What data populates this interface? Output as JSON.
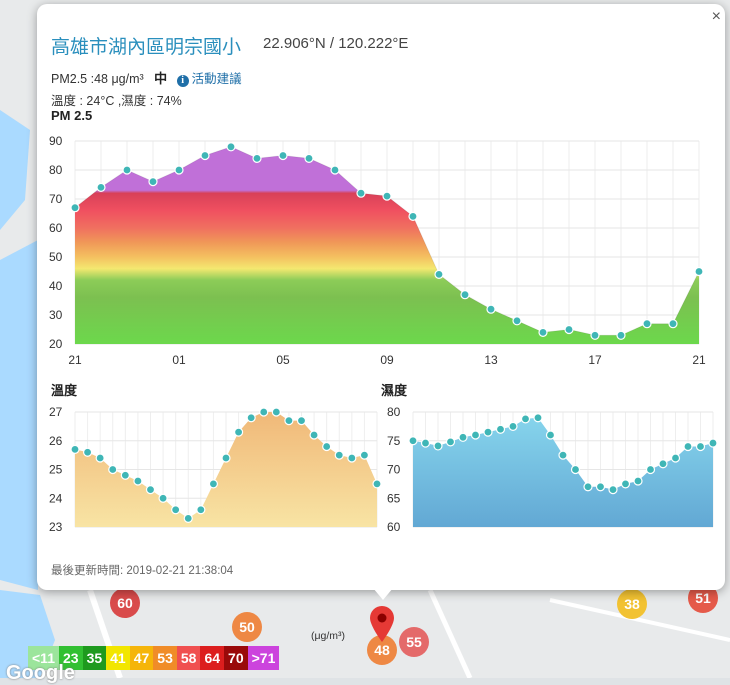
{
  "popup": {
    "close_label": "×",
    "title": "高雄市湖內區明宗國小",
    "coordinates": "22.906°N / 120.222°E",
    "pm25_text": "PM2.5 :48 μg/m³",
    "level_text": "中",
    "advice_icon": "info-icon",
    "advice_text": "活動建議",
    "temp_humidity_text": "溫度 : 24°C ,濕度 : 74%",
    "updated_text": "最後更新時間: 2019-02-21 21:38:04"
  },
  "chart_data": [
    {
      "type": "area",
      "title": "PM 2.5",
      "x": [
        "21",
        "22",
        "23",
        "00",
        "01",
        "02",
        "03",
        "04",
        "05",
        "06",
        "07",
        "08",
        "09",
        "10",
        "11",
        "12",
        "13",
        "14",
        "15",
        "16",
        "17",
        "18",
        "19",
        "20",
        "21"
      ],
      "xticks": [
        "21",
        "01",
        "05",
        "09",
        "13",
        "17",
        "21"
      ],
      "values": [
        67,
        74,
        80,
        76,
        80,
        85,
        88,
        84,
        85,
        84,
        80,
        72,
        71,
        64,
        44,
        37,
        32,
        28,
        24,
        25,
        23,
        23,
        27,
        27,
        45
      ],
      "ylim": [
        20,
        90
      ],
      "yticks": [
        20,
        30,
        40,
        50,
        60,
        70,
        80,
        90
      ]
    },
    {
      "type": "area",
      "title": "溫度",
      "values": [
        25.7,
        25.6,
        25.4,
        25.0,
        24.8,
        24.6,
        24.3,
        24.0,
        23.6,
        23.3,
        23.6,
        24.5,
        25.4,
        26.3,
        26.8,
        27.0,
        27.0,
        26.7,
        26.7,
        26.2,
        25.8,
        25.5,
        25.4,
        25.5,
        24.5
      ],
      "ylim": [
        23,
        27
      ],
      "yticks": [
        23,
        24,
        25,
        26,
        27
      ]
    },
    {
      "type": "area",
      "title": "濕度",
      "values": [
        75.0,
        74.6,
        74.1,
        74.8,
        75.6,
        76.0,
        76.5,
        77.0,
        77.5,
        78.8,
        79.0,
        76.0,
        72.5,
        70.0,
        67.0,
        67.0,
        66.5,
        67.5,
        68.0,
        70.0,
        71.0,
        72.0,
        74.0,
        74.0,
        74.6
      ],
      "ylim": [
        60,
        80
      ],
      "yticks": [
        60,
        65,
        70,
        75,
        80
      ]
    }
  ],
  "legend": [
    {
      "label": "<11",
      "color": "#9ce59c"
    },
    {
      "label": "23",
      "color": "#32c032"
    },
    {
      "label": "35",
      "color": "#1e9a1e"
    },
    {
      "label": "41",
      "color": "#f2e600"
    },
    {
      "label": "47",
      "color": "#f5b50a"
    },
    {
      "label": "53",
      "color": "#f08c28"
    },
    {
      "label": "58",
      "color": "#f05050"
    },
    {
      "label": "64",
      "color": "#dc1e1e"
    },
    {
      "label": "70",
      "color": "#9a0a0a"
    },
    {
      "label": ">71",
      "color": "#cc44dd"
    }
  ],
  "legend_unit": "(μg/m³)",
  "map_markers": [
    {
      "label": "60",
      "color": "#d94b4b"
    },
    {
      "label": "50",
      "color": "#ee8844"
    },
    {
      "label": "48",
      "color": "#ee8844"
    },
    {
      "label": "55",
      "color": "#e46a6a"
    },
    {
      "label": "38",
      "color": "#f2c232"
    },
    {
      "label": "51",
      "color": "#e55a4a"
    }
  ],
  "attribution": "Google"
}
